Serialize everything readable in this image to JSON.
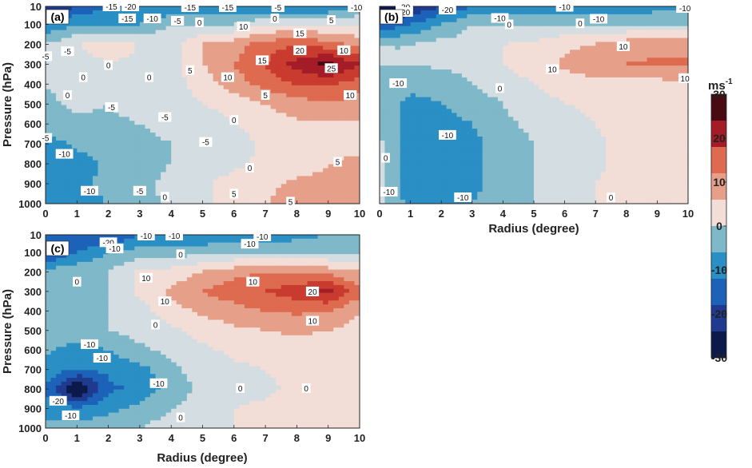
{
  "figure": {
    "panels": [
      {
        "panel_label": "(a)",
        "xlabel": "",
        "ylabel": "Pressure (hPa)",
        "xticks": [
          "0",
          "1",
          "2",
          "3",
          "4",
          "5",
          "6",
          "7",
          "8",
          "9",
          "10"
        ],
        "yticks": [
          "10",
          "100",
          "200",
          "300",
          "400",
          "500",
          "600",
          "700",
          "800",
          "900",
          "1000"
        ]
      },
      {
        "panel_label": "(b)",
        "xlabel": "Radius (degree)",
        "ylabel": "",
        "xticks": [
          "0",
          "1",
          "2",
          "3",
          "4",
          "5",
          "6",
          "7",
          "8",
          "9",
          "10"
        ],
        "yticks": []
      },
      {
        "panel_label": "(c)",
        "xlabel": "Radius (degree)",
        "ylabel": "Pressure (hPa)",
        "xticks": [
          "0",
          "1",
          "2",
          "3",
          "4",
          "5",
          "6",
          "7",
          "8",
          "9",
          "10"
        ],
        "yticks": [
          "10",
          "100",
          "200",
          "300",
          "400",
          "500",
          "600",
          "700",
          "800",
          "900",
          "1000"
        ]
      }
    ],
    "colorbar": {
      "unit": "ms",
      "unit_exp": "-1",
      "ticks": [
        "30",
        "20",
        "10",
        "0",
        "-10",
        "-20",
        "-30"
      ]
    }
  },
  "colors": {
    "levels": [
      {
        "min": -35,
        "max": -25,
        "color": "#0b1a4a"
      },
      {
        "min": -25,
        "max": -20,
        "color": "#1f3a8f"
      },
      {
        "min": -20,
        "max": -15,
        "color": "#1c62b8"
      },
      {
        "min": -15,
        "max": -10,
        "color": "#2a8fc4"
      },
      {
        "min": -10,
        "max": -5,
        "color": "#7fb8c8"
      },
      {
        "min": -5,
        "max": 0,
        "color": "#d4dde1"
      },
      {
        "min": 0,
        "max": 5,
        "color": "#f2ddd7"
      },
      {
        "min": 5,
        "max": 10,
        "color": "#e6a08a"
      },
      {
        "min": 10,
        "max": 15,
        "color": "#de6a4f"
      },
      {
        "min": 15,
        "max": 20,
        "color": "#c93a2f"
      },
      {
        "min": 20,
        "max": 25,
        "color": "#a41c28"
      },
      {
        "min": 25,
        "max": 35,
        "color": "#4a0a12"
      }
    ],
    "colorbar_gradient": [
      "#4a0a12",
      "#a41c28",
      "#de6a4f",
      "#e6a08a",
      "#f2ddd7",
      "#7fb8c8",
      "#2a8fc4",
      "#1c62b8",
      "#1f3a8f",
      "#0b1a4a"
    ]
  },
  "chart_data": [
    {
      "type": "heatmap",
      "title": "(a)",
      "xlabel": "",
      "ylabel": "Pressure (hPa)",
      "xlim": [
        0,
        10
      ],
      "ylim": [
        1000,
        10
      ],
      "x": [
        0,
        1,
        2,
        3,
        4,
        5,
        6,
        7,
        8,
        9,
        10
      ],
      "y": [
        10,
        100,
        200,
        300,
        400,
        500,
        600,
        700,
        800,
        900,
        1000
      ],
      "z": [
        [
          -25,
          -20,
          -15,
          -15,
          -15,
          -15,
          -15,
          -15,
          -15,
          -15,
          -10
        ],
        [
          -15,
          -10,
          -10,
          -10,
          -5,
          -5,
          -5,
          0,
          0,
          0,
          0
        ],
        [
          -5,
          0,
          2,
          0,
          -2,
          5,
          8,
          12,
          15,
          12,
          8
        ],
        [
          -5,
          -2,
          0,
          -1,
          -2,
          5,
          10,
          15,
          22,
          27,
          20
        ],
        [
          -5,
          -3,
          -2,
          -3,
          -2,
          2,
          8,
          12,
          15,
          16,
          12
        ],
        [
          -6,
          -4,
          -5,
          -3,
          -2,
          0,
          2,
          5,
          8,
          9,
          8
        ],
        [
          -8,
          -6,
          -6,
          -5,
          -4,
          -3,
          0,
          2,
          4,
          4,
          4
        ],
        [
          -12,
          -9,
          -8,
          -6,
          -5,
          -4,
          -2,
          1,
          2,
          3,
          4
        ],
        [
          -14,
          -12,
          -9,
          -7,
          -5,
          -3,
          -1,
          1,
          3,
          5,
          6
        ],
        [
          -13,
          -11,
          -9,
          -7,
          -3,
          -1,
          2,
          4,
          6,
          6,
          7
        ],
        [
          -12,
          -11,
          -10,
          -7,
          -4,
          -1,
          3,
          5,
          6,
          7,
          7
        ]
      ],
      "contour_labels": [
        {
          "text": "-15",
          "x": 2.1,
          "y": 10
        },
        {
          "text": "-20",
          "x": 2.7,
          "y": 10
        },
        {
          "text": "-15",
          "x": 4.6,
          "y": 14
        },
        {
          "text": "-15",
          "x": 5.8,
          "y": 14
        },
        {
          "text": "-5",
          "x": 7.4,
          "y": 14
        },
        {
          "text": "-10",
          "x": 9.9,
          "y": 14
        },
        {
          "text": "-15",
          "x": 2.6,
          "y": 70
        },
        {
          "text": "-10",
          "x": 3.4,
          "y": 70
        },
        {
          "text": "-5",
          "x": 4.2,
          "y": 82
        },
        {
          "text": "0",
          "x": 4.9,
          "y": 90
        },
        {
          "text": "0",
          "x": 7.3,
          "y": 70
        },
        {
          "text": "5",
          "x": 9.1,
          "y": 78
        },
        {
          "text": "10",
          "x": 6.3,
          "y": 110
        },
        {
          "text": "15",
          "x": 8.1,
          "y": 145
        },
        {
          "text": "20",
          "x": 8.1,
          "y": 230
        },
        {
          "text": "15",
          "x": 6.9,
          "y": 280
        },
        {
          "text": "25",
          "x": 9.1,
          "y": 320
        },
        {
          "text": "10",
          "x": 9.5,
          "y": 230
        },
        {
          "text": "-5",
          "x": 0.7,
          "y": 235
        },
        {
          "text": "-5",
          "x": 0.0,
          "y": 260
        },
        {
          "text": "0",
          "x": 2.0,
          "y": 305
        },
        {
          "text": "0",
          "x": 1.2,
          "y": 365
        },
        {
          "text": "0",
          "x": 3.3,
          "y": 365
        },
        {
          "text": "5",
          "x": 4.6,
          "y": 330
        },
        {
          "text": "10",
          "x": 5.8,
          "y": 365
        },
        {
          "text": "5",
          "x": 7.0,
          "y": 455
        },
        {
          "text": "10",
          "x": 9.7,
          "y": 455
        },
        {
          "text": "0",
          "x": 0.7,
          "y": 455
        },
        {
          "text": "-5",
          "x": 2.1,
          "y": 515
        },
        {
          "text": "-5",
          "x": 3.8,
          "y": 565
        },
        {
          "text": "0",
          "x": 6.0,
          "y": 580
        },
        {
          "text": "-5",
          "x": 0.0,
          "y": 670
        },
        {
          "text": "-5",
          "x": 5.1,
          "y": 690
        },
        {
          "text": "-10",
          "x": 0.6,
          "y": 750
        },
        {
          "text": "0",
          "x": 6.5,
          "y": 820
        },
        {
          "text": "5",
          "x": 9.3,
          "y": 790
        },
        {
          "text": "-10",
          "x": 1.4,
          "y": 935
        },
        {
          "text": "-5",
          "x": 3.0,
          "y": 935
        },
        {
          "text": "0",
          "x": 3.8,
          "y": 965
        },
        {
          "text": "5",
          "x": 6.0,
          "y": 950
        },
        {
          "text": "5",
          "x": 7.8,
          "y": 990
        }
      ]
    },
    {
      "type": "heatmap",
      "title": "(b)",
      "xlabel": "Radius (degree)",
      "ylabel": "",
      "xlim": [
        0,
        10
      ],
      "ylim": [
        1000,
        10
      ],
      "x": [
        0,
        1,
        2,
        3,
        4,
        5,
        6,
        7,
        8,
        9,
        10
      ],
      "y": [
        10,
        100,
        200,
        300,
        400,
        500,
        600,
        700,
        800,
        900,
        1000
      ],
      "z": [
        [
          -30,
          -25,
          -20,
          -15,
          -15,
          -15,
          -15,
          -15,
          -15,
          -12,
          -10
        ],
        [
          -20,
          -15,
          -10,
          -5,
          -5,
          -5,
          -5,
          -5,
          -5,
          -5,
          -5
        ],
        [
          -5,
          -5,
          -3,
          -3,
          0,
          1,
          4,
          5,
          8,
          8,
          8
        ],
        [
          -5,
          -5,
          -4,
          -3,
          0,
          2,
          6,
          8,
          10,
          11,
          11
        ],
        [
          -6,
          -8,
          -8,
          -5,
          -2,
          0,
          2,
          4,
          3,
          3,
          4
        ],
        [
          -5,
          -12,
          -10,
          -8,
          -5,
          -2,
          0,
          1,
          2,
          2,
          2
        ],
        [
          -5,
          -12,
          -12,
          -10,
          -6,
          -4,
          -2,
          0,
          2,
          2,
          2
        ],
        [
          -4,
          -14,
          -13,
          -12,
          -7,
          -5,
          -3,
          -1,
          2,
          2,
          2
        ],
        [
          -4,
          -14,
          -14,
          -12,
          -7,
          -5,
          -3,
          -1,
          2,
          2,
          2
        ],
        [
          -4,
          -14,
          -14,
          -12,
          -7,
          -5,
          -3,
          0,
          2,
          2,
          2
        ],
        [
          -3,
          -12,
          -12,
          -10,
          -6,
          -5,
          -3,
          0,
          2,
          2,
          2
        ]
      ],
      "contour_labels": [
        {
          "text": "-20",
          "x": 0.8,
          "y": 13
        },
        {
          "text": "-20",
          "x": 2.2,
          "y": 26
        },
        {
          "text": "-20",
          "x": 0.8,
          "y": 38
        },
        {
          "text": "-10",
          "x": 6.0,
          "y": 12
        },
        {
          "text": "-10",
          "x": 9.9,
          "y": 18
        },
        {
          "text": "-10",
          "x": 3.9,
          "y": 68
        },
        {
          "text": "0",
          "x": 4.2,
          "y": 100
        },
        {
          "text": "-10",
          "x": 7.1,
          "y": 72
        },
        {
          "text": "0",
          "x": 6.5,
          "y": 95
        },
        {
          "text": "10",
          "x": 7.9,
          "y": 210
        },
        {
          "text": "-10",
          "x": 0.6,
          "y": 395
        },
        {
          "text": "10",
          "x": 5.6,
          "y": 325
        },
        {
          "text": "10",
          "x": 9.9,
          "y": 370
        },
        {
          "text": "0",
          "x": 3.9,
          "y": 420
        },
        {
          "text": "-10",
          "x": 2.2,
          "y": 655
        },
        {
          "text": "0",
          "x": 0.2,
          "y": 770
        },
        {
          "text": "-10",
          "x": 0.3,
          "y": 940
        },
        {
          "text": "-10",
          "x": 2.7,
          "y": 968
        },
        {
          "text": "0",
          "x": 7.5,
          "y": 968
        }
      ]
    },
    {
      "type": "heatmap",
      "title": "(c)",
      "xlabel": "Radius (degree)",
      "ylabel": "Pressure (hPa)",
      "xlim": [
        0,
        10
      ],
      "ylim": [
        1000,
        10
      ],
      "x": [
        0,
        1,
        2,
        3,
        4,
        5,
        6,
        7,
        8,
        9,
        10
      ],
      "y": [
        10,
        100,
        200,
        300,
        400,
        500,
        600,
        700,
        800,
        900,
        1000
      ],
      "z": [
        [
          -15,
          -20,
          -20,
          -15,
          -15,
          -15,
          -15,
          -15,
          -12,
          -10,
          -10
        ],
        [
          -22,
          -15,
          -10,
          -8,
          -8,
          -6,
          -5,
          -5,
          -5,
          -5,
          -5
        ],
        [
          -8,
          -6,
          -5,
          1,
          2,
          5,
          8,
          10,
          10,
          8,
          5
        ],
        [
          -8,
          -6,
          -5,
          1,
          6,
          10,
          13,
          15,
          18,
          22,
          12
        ],
        [
          -8,
          -6,
          -5,
          -2,
          3,
          6,
          8,
          10,
          11,
          10,
          5
        ],
        [
          -8,
          -6,
          -5,
          -3,
          -1,
          2,
          4,
          5,
          6,
          5,
          3
        ],
        [
          -9,
          -12,
          -10,
          -6,
          -4,
          -1,
          1,
          2,
          3,
          2,
          2
        ],
        [
          -12,
          -15,
          -14,
          -12,
          -6,
          -3,
          -1,
          0,
          2,
          2,
          2
        ],
        [
          -15,
          -32,
          -16,
          -14,
          -8,
          -4,
          -2,
          -1,
          1,
          1,
          1
        ],
        [
          -12,
          -14,
          -12,
          -8,
          -5,
          -2,
          0,
          1,
          2,
          1,
          1
        ],
        [
          -8,
          -8,
          -6,
          -5,
          -3,
          -1,
          0,
          1,
          1,
          1,
          1
        ]
      ],
      "contour_labels": [
        {
          "text": "-10",
          "x": 3.2,
          "y": 14
        },
        {
          "text": "-10",
          "x": 4.1,
          "y": 14
        },
        {
          "text": "-10",
          "x": 6.9,
          "y": 18
        },
        {
          "text": "-20",
          "x": 2.0,
          "y": 48
        },
        {
          "text": "-10",
          "x": 2.2,
          "y": 80
        },
        {
          "text": "-10",
          "x": 6.5,
          "y": 56
        },
        {
          "text": "0",
          "x": 4.3,
          "y": 110
        },
        {
          "text": "0",
          "x": 1.0,
          "y": 250
        },
        {
          "text": "10",
          "x": 3.2,
          "y": 230
        },
        {
          "text": "10",
          "x": 6.6,
          "y": 250
        },
        {
          "text": "20",
          "x": 8.5,
          "y": 300
        },
        {
          "text": "10",
          "x": 3.8,
          "y": 350
        },
        {
          "text": "10",
          "x": 8.5,
          "y": 450
        },
        {
          "text": "0",
          "x": 3.5,
          "y": 470
        },
        {
          "text": "-10",
          "x": 1.4,
          "y": 570
        },
        {
          "text": "-10",
          "x": 1.8,
          "y": 640
        },
        {
          "text": "-10",
          "x": 3.6,
          "y": 770
        },
        {
          "text": "0",
          "x": 6.2,
          "y": 795
        },
        {
          "text": "0",
          "x": 8.3,
          "y": 795
        },
        {
          "text": "-20",
          "x": 0.4,
          "y": 860
        },
        {
          "text": "-10",
          "x": 0.8,
          "y": 935
        },
        {
          "text": "0",
          "x": 4.3,
          "y": 945
        }
      ]
    }
  ]
}
